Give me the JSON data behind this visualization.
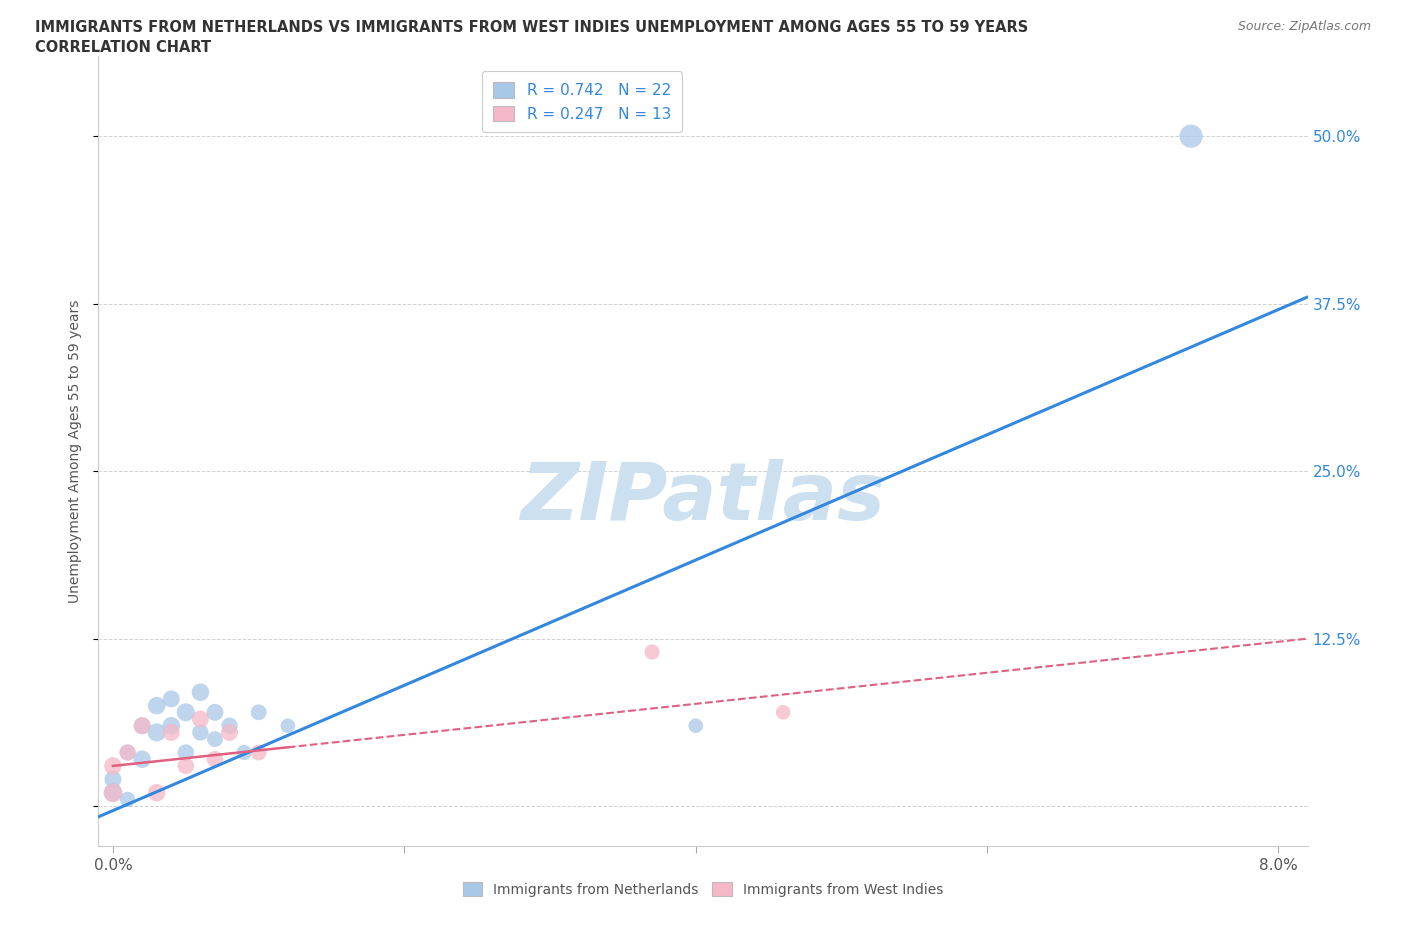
{
  "title_line1": "IMMIGRANTS FROM NETHERLANDS VS IMMIGRANTS FROM WEST INDIES UNEMPLOYMENT AMONG AGES 55 TO 59 YEARS",
  "title_line2": "CORRELATION CHART",
  "source": "Source: ZipAtlas.com",
  "ylabel": "Unemployment Among Ages 55 to 59 years",
  "xlim": [
    -0.001,
    0.082
  ],
  "ylim": [
    -0.03,
    0.56
  ],
  "yticks": [
    0.0,
    0.125,
    0.25,
    0.375,
    0.5
  ],
  "ytick_labels": [
    "",
    "12.5%",
    "25.0%",
    "37.5%",
    "50.0%"
  ],
  "xticks": [
    0.0,
    0.02,
    0.04,
    0.06,
    0.08
  ],
  "xtick_labels": [
    "0.0%",
    "",
    "",
    "",
    "8.0%"
  ],
  "blue_R": 0.742,
  "blue_N": 22,
  "pink_R": 0.247,
  "pink_N": 13,
  "blue_color": "#a8c8e8",
  "pink_color": "#f4b8c8",
  "blue_line_color": "#3388dd",
  "pink_line_color": "#e06080",
  "watermark": "ZIPatlas",
  "watermark_color": "#cce0f0",
  "blue_scatter_x": [
    0.0,
    0.0,
    0.001,
    0.001,
    0.002,
    0.002,
    0.003,
    0.003,
    0.004,
    0.004,
    0.005,
    0.005,
    0.006,
    0.006,
    0.007,
    0.007,
    0.008,
    0.009,
    0.01,
    0.012,
    0.04,
    0.074
  ],
  "blue_scatter_y": [
    0.01,
    0.02,
    0.005,
    0.04,
    0.035,
    0.06,
    0.055,
    0.075,
    0.06,
    0.08,
    0.07,
    0.04,
    0.085,
    0.055,
    0.07,
    0.05,
    0.06,
    0.04,
    0.07,
    0.06,
    0.06,
    0.5
  ],
  "blue_scatter_size": [
    180,
    150,
    120,
    130,
    160,
    150,
    170,
    160,
    160,
    150,
    170,
    140,
    160,
    140,
    150,
    130,
    140,
    120,
    130,
    110,
    110,
    280
  ],
  "pink_scatter_x": [
    0.0,
    0.0,
    0.001,
    0.002,
    0.003,
    0.004,
    0.005,
    0.006,
    0.007,
    0.008,
    0.01,
    0.037,
    0.046
  ],
  "pink_scatter_y": [
    0.01,
    0.03,
    0.04,
    0.06,
    0.01,
    0.055,
    0.03,
    0.065,
    0.035,
    0.055,
    0.04,
    0.115,
    0.07
  ],
  "pink_scatter_size": [
    180,
    160,
    140,
    150,
    160,
    150,
    140,
    150,
    140,
    150,
    130,
    120,
    110
  ],
  "blue_line_x": [
    -0.001,
    0.082
  ],
  "blue_line_y": [
    -0.008,
    0.38
  ],
  "pink_line_x": [
    0.0,
    0.082
  ],
  "pink_line_y": [
    0.03,
    0.125
  ]
}
